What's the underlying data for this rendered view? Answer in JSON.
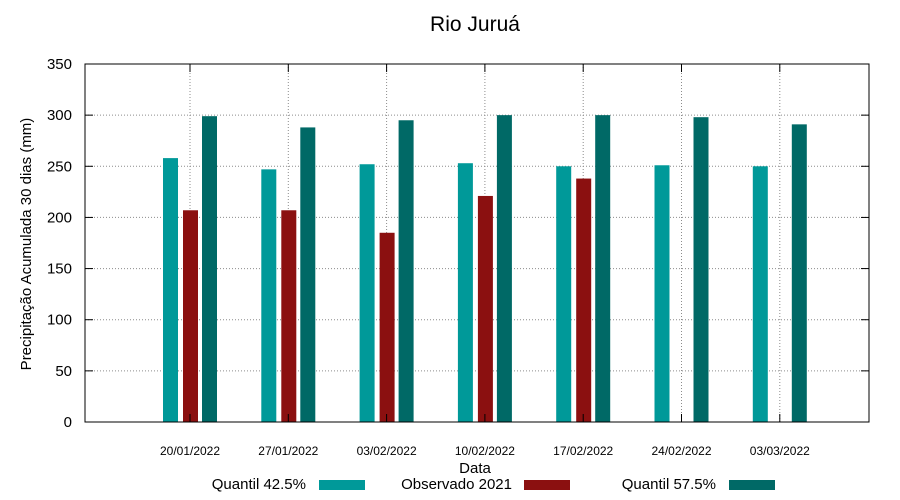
{
  "chart_data": {
    "type": "bar",
    "title": "Rio Juruá",
    "xlabel": "Data",
    "ylabel": "Precipitação Acumulada 30 dias (mm)",
    "ylim": [
      0,
      350
    ],
    "yticks": [
      0,
      50,
      100,
      150,
      200,
      250,
      300,
      350
    ],
    "grid": true,
    "legend_position": "bottom",
    "categories": [
      "20/01/2022",
      "27/01/2022",
      "03/02/2022",
      "10/02/2022",
      "17/02/2022",
      "24/02/2022",
      "03/03/2022"
    ],
    "series": [
      {
        "name": "Quantil 42.5%",
        "color": "#009999",
        "values": [
          258,
          247,
          252,
          253,
          250,
          251,
          250
        ]
      },
      {
        "name": "Observado 2021",
        "color": "#8b1010",
        "values": [
          207,
          207,
          185,
          221,
          238,
          null,
          null
        ]
      },
      {
        "name": "Quantil 57.5%",
        "color": "#006966",
        "values": [
          299,
          288,
          295,
          300,
          300,
          298,
          291
        ]
      }
    ]
  }
}
